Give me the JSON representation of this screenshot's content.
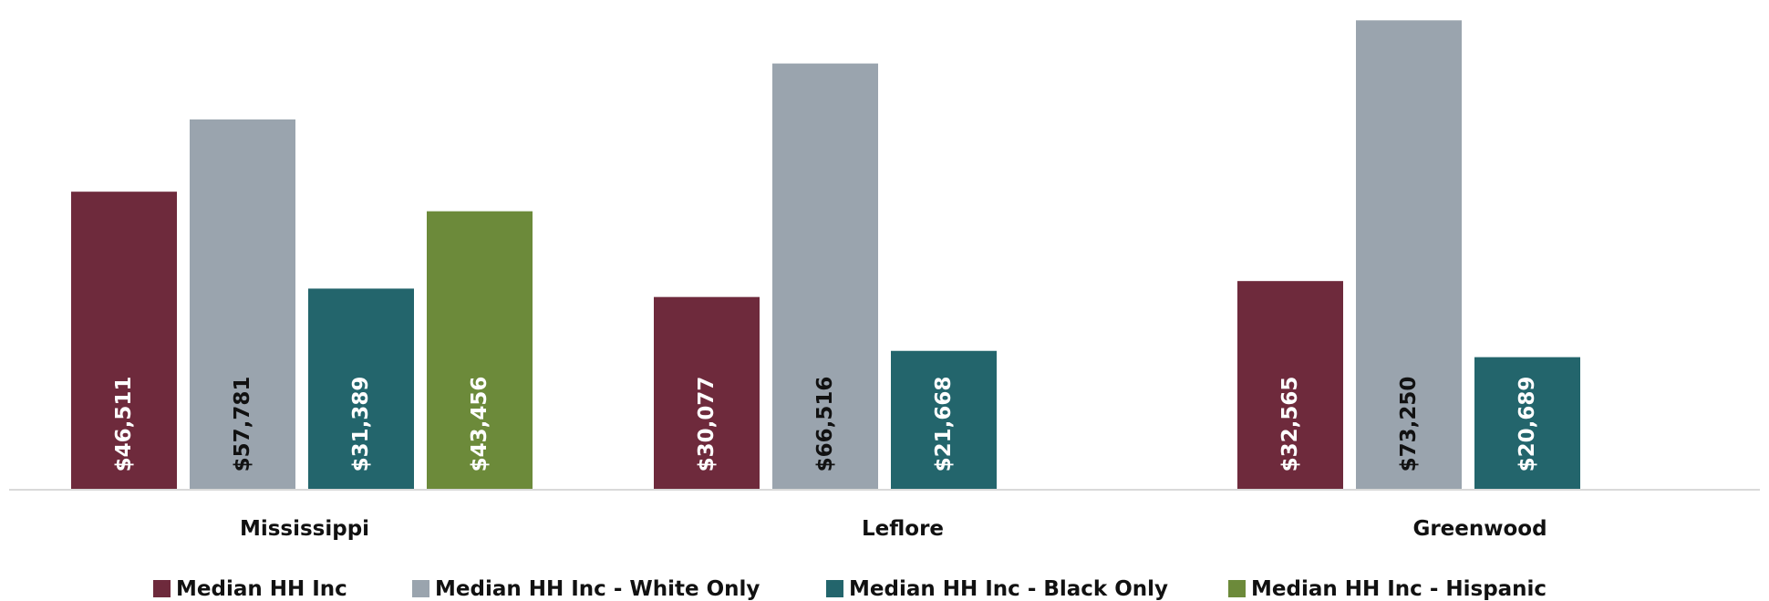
{
  "chart_data": {
    "type": "bar",
    "categories": [
      "Mississippi",
      "Leflore",
      "Greenwood"
    ],
    "series": [
      {
        "name": "Median HH Inc",
        "values": [
          46511,
          30077,
          32565
        ],
        "labels": [
          "$46,511",
          "$30,077",
          "$32,565"
        ],
        "color": "#6e2a3c",
        "label_color": "#ffffff"
      },
      {
        "name": "Median HH Inc - White Only",
        "values": [
          57781,
          66516,
          73250
        ],
        "labels": [
          "$57,781",
          "$66,516",
          "$73,250"
        ],
        "color": "#9aa4ae",
        "label_color": "#111111"
      },
      {
        "name": "Median HH Inc - Black Only",
        "values": [
          31389,
          21668,
          20689
        ],
        "labels": [
          "$31,389",
          "$21,668",
          "$20,689"
        ],
        "color": "#23656c",
        "label_color": "#ffffff"
      },
      {
        "name": "Median HH Inc - Hispanic",
        "values": [
          43456,
          null,
          null
        ],
        "labels": [
          "$43,456",
          null,
          null
        ],
        "color": "#6c8a3a",
        "label_color": "#ffffff"
      }
    ],
    "ylim": [
      0,
      75000
    ],
    "grid": false,
    "legend_position": "bottom",
    "data_label_orientation": "vertical"
  }
}
